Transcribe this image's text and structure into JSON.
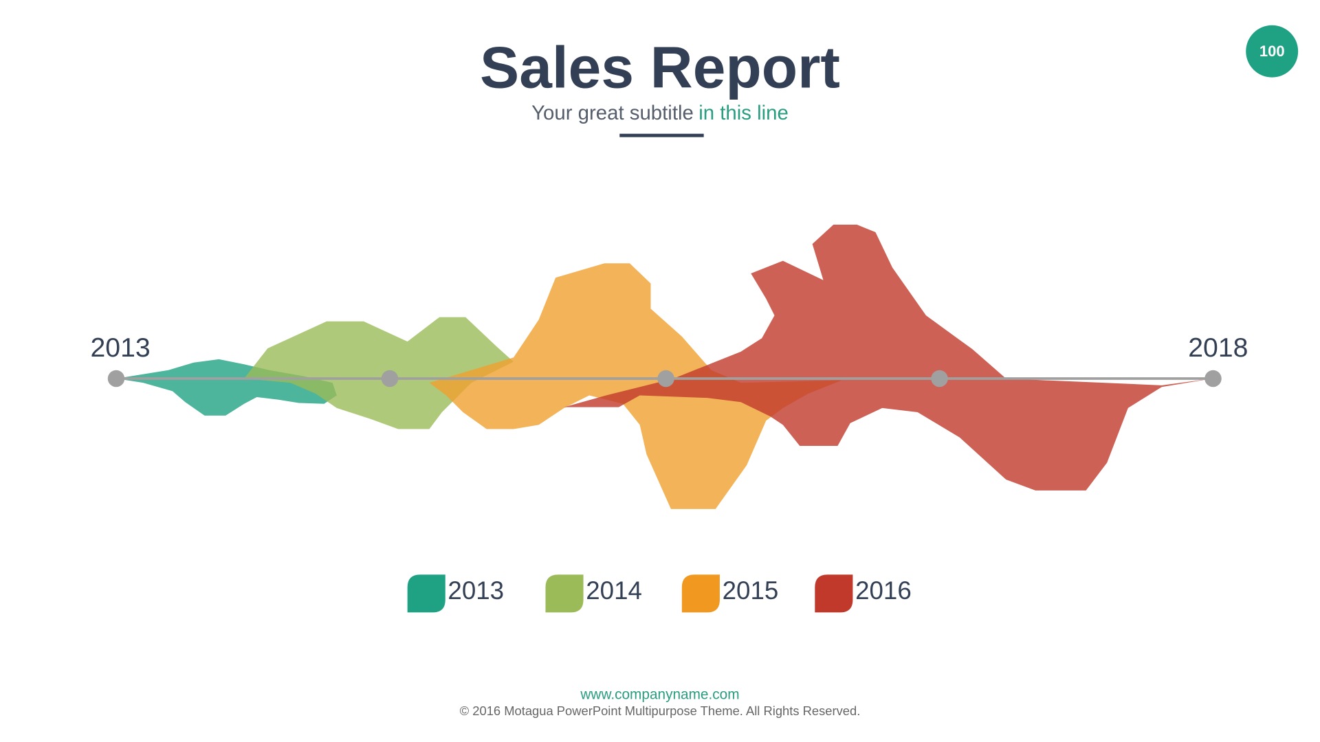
{
  "header": {
    "title": "Sales Report",
    "subtitle": "Your great subtitle",
    "subtitle_highlight": "in this line"
  },
  "page_number": "100",
  "timeline": {
    "start": "2013",
    "end": "2018"
  },
  "legend": [
    "2013",
    "2014",
    "2015",
    "2016"
  ],
  "footer": {
    "url": "www.companyname.com",
    "copyright": "© 2016 Motagua PowerPoint Multipurpose Theme. All Rights Reserved."
  }
}
